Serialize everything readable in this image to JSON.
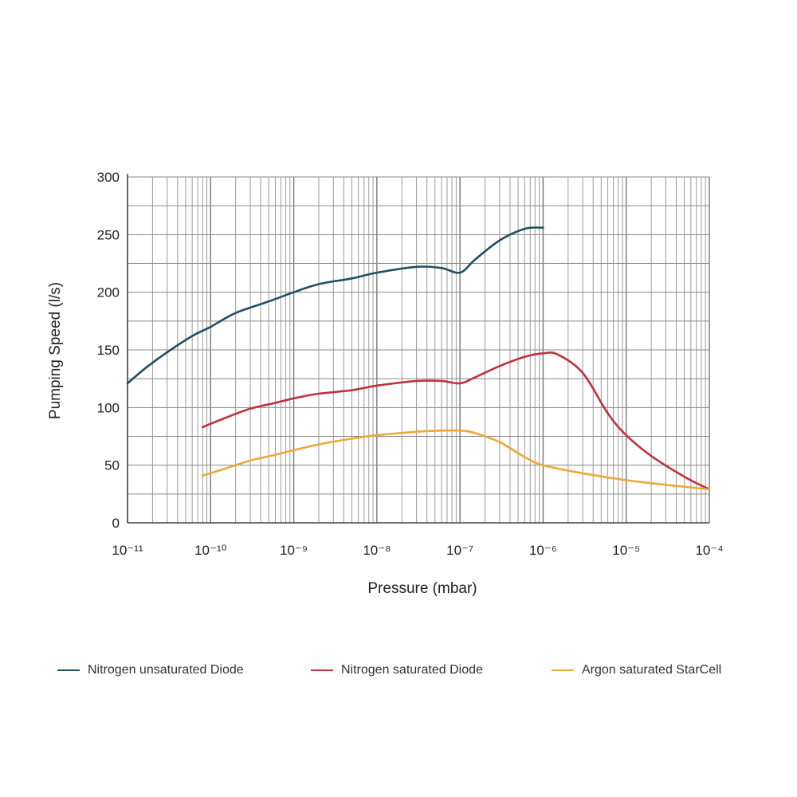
{
  "chart_data": {
    "type": "line",
    "xlabel": "Pressure (mbar)",
    "ylabel": "Pumping Speed (l/s)",
    "xscale": "log",
    "xlim": [
      1e-11,
      0.0001
    ],
    "ylim": [
      0,
      300
    ],
    "grid": true,
    "legend_position": "bottom",
    "xtick_labels": [
      "10⁻¹¹",
      "10⁻¹⁰",
      "10⁻⁹",
      "10⁻⁸",
      "10⁻⁷",
      "10⁻⁶",
      "10⁻⁵",
      "10⁻⁴"
    ],
    "yticks": [
      0,
      50,
      100,
      150,
      200,
      250,
      300
    ],
    "series": [
      {
        "name": "Nitrogen unsaturated Diode",
        "color": "#1f4e63",
        "x": [
          1e-11,
          1.7e-11,
          3e-11,
          6e-11,
          1e-10,
          2e-10,
          5e-10,
          1e-09,
          2e-09,
          5e-09,
          1e-08,
          3e-08,
          6e-08,
          1e-07,
          1.5e-07,
          3e-07,
          6e-07,
          1e-06
        ],
        "y": [
          121,
          135,
          148,
          162,
          170,
          182,
          192,
          200,
          207,
          212,
          217,
          222,
          221,
          217,
          228,
          245,
          255,
          256
        ]
      },
      {
        "name": "Nitrogen saturated Diode",
        "color": "#c0323d",
        "x": [
          8e-11,
          1.5e-10,
          3e-10,
          6e-10,
          1e-09,
          2e-09,
          5e-09,
          1e-08,
          3e-08,
          6e-08,
          1e-07,
          1.5e-07,
          3e-07,
          6e-07,
          1e-06,
          1.5e-06,
          3e-06,
          6e-06,
          1e-05,
          2e-05,
          5e-05,
          0.0001
        ],
        "y": [
          83,
          91,
          99,
          104,
          108,
          112,
          115,
          119,
          123,
          123,
          121,
          126,
          136,
          144,
          147,
          146,
          130,
          95,
          76,
          58,
          40,
          29
        ]
      },
      {
        "name": "Argon saturated StarCell",
        "color": "#eea838",
        "x": [
          8e-11,
          1.5e-10,
          3e-10,
          6e-10,
          1e-09,
          2e-09,
          5e-09,
          1e-08,
          3e-08,
          6e-08,
          1e-07,
          1.5e-07,
          3e-07,
          6e-07,
          1e-06,
          3e-06,
          1e-05,
          3e-05,
          0.0001
        ],
        "y": [
          41,
          47,
          54,
          59,
          63,
          68,
          73,
          76,
          79,
          80,
          80,
          78,
          70,
          57,
          50,
          43,
          37,
          33,
          29
        ]
      }
    ]
  }
}
